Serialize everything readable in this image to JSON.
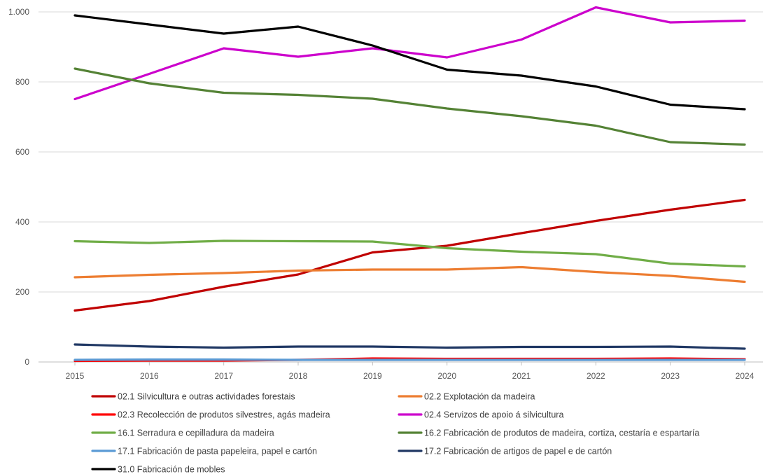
{
  "chart_data": {
    "type": "line",
    "title": "",
    "xlabel": "",
    "ylabel": "",
    "x": [
      "2015",
      "2016",
      "2017",
      "2018",
      "2019",
      "2020",
      "2021",
      "2022",
      "2023",
      "2024"
    ],
    "ylim": [
      0,
      1000
    ],
    "yticks": [
      0,
      200,
      400,
      600,
      800,
      1000
    ],
    "ytick_labels": [
      "0",
      "200",
      "400",
      "600",
      "800",
      "1.000"
    ],
    "grid": "horizontal",
    "legend_position": "bottom",
    "series": [
      {
        "name": "02.1 Silvicultura e outras actividades forestais",
        "color": "#c00000",
        "values": [
          147,
          174,
          215,
          250,
          313,
          332,
          368,
          403,
          435,
          463
        ]
      },
      {
        "name": "02.2 Explotación da madeira",
        "color": "#ed7d31",
        "values": [
          242,
          249,
          254,
          261,
          264,
          264,
          271,
          257,
          246,
          229
        ]
      },
      {
        "name": "02.3 Recolección de produtos silvestres, agás madeira",
        "color": "#ff0000",
        "values": [
          3,
          4,
          4,
          6,
          10,
          9,
          9,
          9,
          10,
          8
        ]
      },
      {
        "name": "02.4 Servizos de apoio á silvicultura",
        "color": "#cc00cc",
        "values": [
          751,
          823,
          896,
          872,
          896,
          870,
          921,
          1013,
          970,
          975
        ]
      },
      {
        "name": "16.1 Serradura e cepilladura da madeira",
        "color": "#70ad47",
        "values": [
          345,
          340,
          346,
          345,
          344,
          325,
          315,
          308,
          281,
          273
        ]
      },
      {
        "name": "16.2 Fabricación de produtos de madeira, cortiza, cestaría e espartaría",
        "color": "#548235",
        "values": [
          838,
          796,
          769,
          763,
          752,
          724,
          702,
          675,
          628,
          621
        ]
      },
      {
        "name": "17.1 Fabricación de pasta papeleira, papel e cartón",
        "color": "#5b9bd5",
        "values": [
          6,
          7,
          7,
          6,
          6,
          6,
          6,
          6,
          6,
          6
        ]
      },
      {
        "name": "17.2 Fabricación de artigos de papel e de cartón",
        "color": "#203864",
        "values": [
          50,
          44,
          41,
          44,
          44,
          41,
          43,
          43,
          44,
          38
        ]
      },
      {
        "name": "31.0 Fabricación de mobles",
        "color": "#000000",
        "values": [
          990,
          964,
          938,
          958,
          904,
          835,
          818,
          787,
          735,
          722
        ]
      }
    ]
  }
}
